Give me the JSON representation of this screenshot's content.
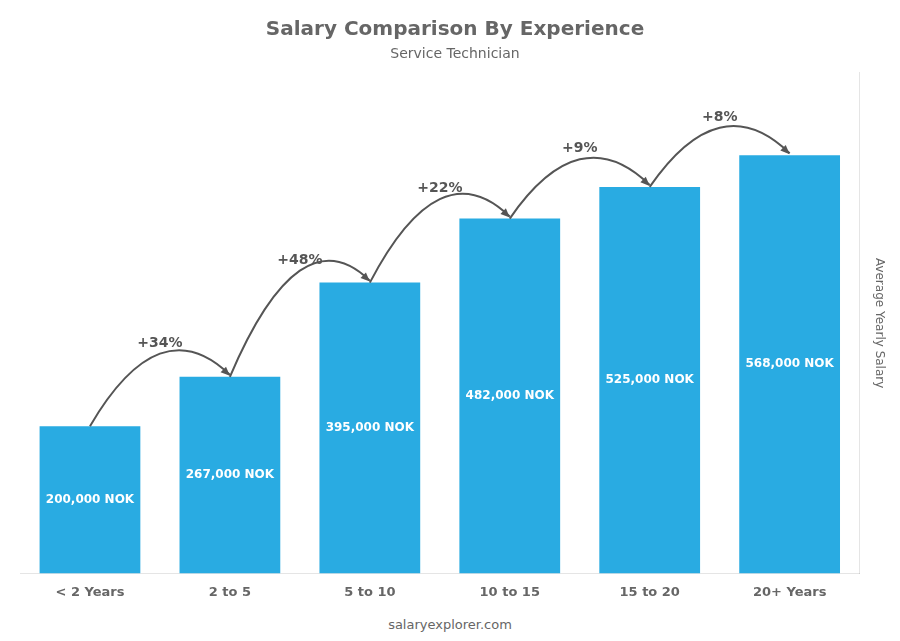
{
  "chart_data": {
    "type": "bar",
    "title": "Salary Comparison By Experience",
    "subtitle": "Service Technician",
    "ylabel": "Average Yearly Salary",
    "categories": [
      "< 2 Years",
      "2 to 5",
      "5 to 10",
      "10 to 15",
      "15 to 20",
      "20+ Years"
    ],
    "values": [
      200000,
      267000,
      395000,
      482000,
      525000,
      568000
    ],
    "value_labels": [
      "200,000 NOK",
      "267,000 NOK",
      "395,000 NOK",
      "482,000 NOK",
      "525,000 NOK",
      "568,000 NOK"
    ],
    "data_labels": true,
    "color": "#29ABE2",
    "ylim": [
      0,
      680000
    ],
    "grid": false,
    "tick_labels": "x",
    "annotations": [
      {
        "text": "+34%",
        "from": "< 2 Years",
        "to": "2 to 5"
      },
      {
        "text": "+48%",
        "from": "2 to 5",
        "to": "5 to 10"
      },
      {
        "text": "+22%",
        "from": "5 to 10",
        "to": "10 to 15"
      },
      {
        "text": "+9%",
        "from": "10 to 15",
        "to": "15 to 20"
      },
      {
        "text": "+8%",
        "from": "15 to 20",
        "to": "20+ Years"
      }
    ],
    "footer": "salaryexplorer.com"
  }
}
